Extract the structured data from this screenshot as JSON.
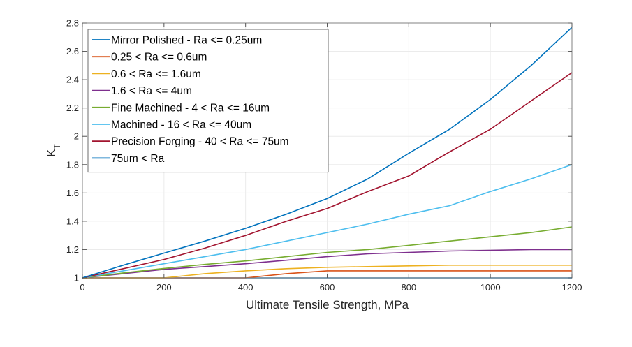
{
  "chart_data": {
    "type": "line",
    "title": "",
    "xlabel": "Ultimate Tensile Strength, MPa",
    "ylabel_main": "K",
    "ylabel_sub": "T",
    "xlim": [
      0,
      1200
    ],
    "ylim": [
      1,
      2.8
    ],
    "xticks": [
      0,
      200,
      400,
      600,
      800,
      1000,
      1200
    ],
    "yticks": [
      1,
      1.2,
      1.4,
      1.6,
      1.8,
      2,
      2.2,
      2.4,
      2.6,
      2.8
    ],
    "xtick_labels": [
      "0",
      "200",
      "400",
      "600",
      "800",
      "1000",
      "1200"
    ],
    "ytick_labels": [
      "1",
      "1.2",
      "1.4",
      "1.6",
      "1.8",
      "2",
      "2.2",
      "2.4",
      "2.6",
      "2.8"
    ],
    "grid": true,
    "legend_position": "top-left",
    "x": [
      0,
      100,
      200,
      300,
      400,
      500,
      600,
      700,
      800,
      900,
      1000,
      1100,
      1200
    ],
    "series": [
      {
        "name": "Mirror Polished - Ra <= 0.25um",
        "color": "#0072BD",
        "values": [
          1,
          1,
          1,
          1,
          1,
          1,
          1,
          1,
          1,
          1,
          1,
          1,
          1
        ]
      },
      {
        "name": "0.25 < Ra <= 0.6um",
        "color": "#D95319",
        "values": [
          1,
          1,
          1,
          1,
          1,
          1.03,
          1.05,
          1.05,
          1.05,
          1.05,
          1.05,
          1.05,
          1.05
        ]
      },
      {
        "name": "0.6 < Ra <= 1.6um",
        "color": "#EDB120",
        "values": [
          1,
          1,
          1,
          1.03,
          1.05,
          1.065,
          1.075,
          1.08,
          1.085,
          1.09,
          1.09,
          1.09,
          1.09
        ]
      },
      {
        "name": "1.6 < Ra <= 4um",
        "color": "#7E2F8E",
        "values": [
          1,
          1.03,
          1.06,
          1.08,
          1.1,
          1.125,
          1.15,
          1.17,
          1.18,
          1.19,
          1.195,
          1.2,
          1.2
        ]
      },
      {
        "name": "Fine Machined - 4 < Ra <= 16um",
        "color": "#77AC30",
        "values": [
          1,
          1.035,
          1.067,
          1.095,
          1.12,
          1.15,
          1.18,
          1.2,
          1.23,
          1.26,
          1.29,
          1.32,
          1.36
        ]
      },
      {
        "name": "Machined - 16 < Ra <= 40um",
        "color": "#4DBEEE",
        "values": [
          1,
          1.05,
          1.1,
          1.15,
          1.2,
          1.26,
          1.32,
          1.38,
          1.45,
          1.51,
          1.61,
          1.7,
          1.8
        ]
      },
      {
        "name": "Precision Forging - 40 < Ra <= 75um",
        "color": "#A2142F",
        "values": [
          1,
          1.065,
          1.13,
          1.21,
          1.3,
          1.4,
          1.49,
          1.61,
          1.72,
          1.89,
          2.05,
          2.25,
          2.45
        ]
      },
      {
        "name": "75um < Ra",
        "color": "#0072BD",
        "values": [
          1,
          1.09,
          1.175,
          1.26,
          1.35,
          1.45,
          1.56,
          1.7,
          1.88,
          2.05,
          2.26,
          2.5,
          2.77
        ]
      }
    ]
  }
}
